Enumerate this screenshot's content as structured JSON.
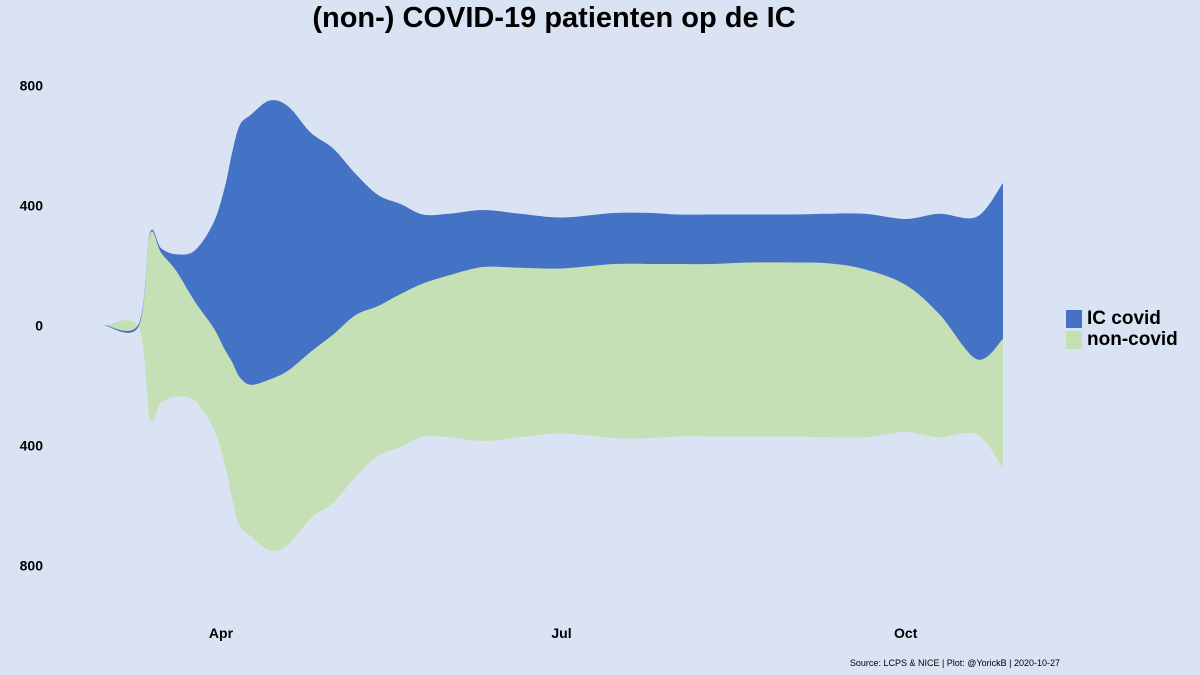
{
  "chart_data": {
    "type": "area",
    "subtype": "streamgraph (symmetric around 0)",
    "title": "(non-) COVID-19 patienten op de IC",
    "xlabel": "",
    "ylabel": "",
    "x_tick_labels": [
      "Apr",
      "Jul",
      "Oct"
    ],
    "y_tick_labels": [
      "800",
      "400",
      "0",
      "400",
      "800"
    ],
    "ylim": [
      -900,
      900
    ],
    "colors": {
      "IC covid": "#4472c4",
      "non-covid": "#c5e0b4",
      "background": "#dae3f3"
    },
    "legend_placement": "right",
    "grid": false,
    "x": [
      "2020-03-01",
      "2020-03-10",
      "2020-03-13",
      "2020-03-16",
      "2020-03-20",
      "2020-03-25",
      "2020-03-30",
      "2020-04-02",
      "2020-04-04",
      "2020-04-06",
      "2020-04-09",
      "2020-04-14",
      "2020-04-19",
      "2020-04-25",
      "2020-05-01",
      "2020-05-07",
      "2020-05-13",
      "2020-05-19",
      "2020-05-25",
      "2020-06-01",
      "2020-06-10",
      "2020-06-20",
      "2020-07-01",
      "2020-07-15",
      "2020-07-25",
      "2020-08-01",
      "2020-08-10",
      "2020-08-20",
      "2020-09-01",
      "2020-09-10",
      "2020-09-20",
      "2020-10-01",
      "2020-10-10",
      "2020-10-20",
      "2020-10-27"
    ],
    "series": [
      {
        "name": "IC covid",
        "values": [
          2,
          8,
          5,
          15,
          55,
          170,
          350,
          540,
          700,
          840,
          900,
          930,
          880,
          730,
          620,
          470,
          370,
          300,
          230,
          205,
          190,
          180,
          170,
          170,
          170,
          165,
          165,
          160,
          160,
          165,
          185,
          220,
          335,
          475,
          520
        ]
      },
      {
        "name": "non-covid",
        "values": [
          0,
          3,
          610,
          500,
          420,
          330,
          335,
          380,
          455,
          495,
          505,
          570,
          580,
          555,
          560,
          540,
          500,
          510,
          510,
          540,
          580,
          565,
          550,
          580,
          580,
          575,
          575,
          580,
          580,
          580,
          560,
          490,
          410,
          250,
          430
        ]
      }
    ]
  },
  "legend": {
    "items": [
      {
        "label": "IC covid"
      },
      {
        "label": "non-covid"
      }
    ]
  },
  "caption": "Source: LCPS & NICE | Plot: @YorickB |  2020-10-27"
}
